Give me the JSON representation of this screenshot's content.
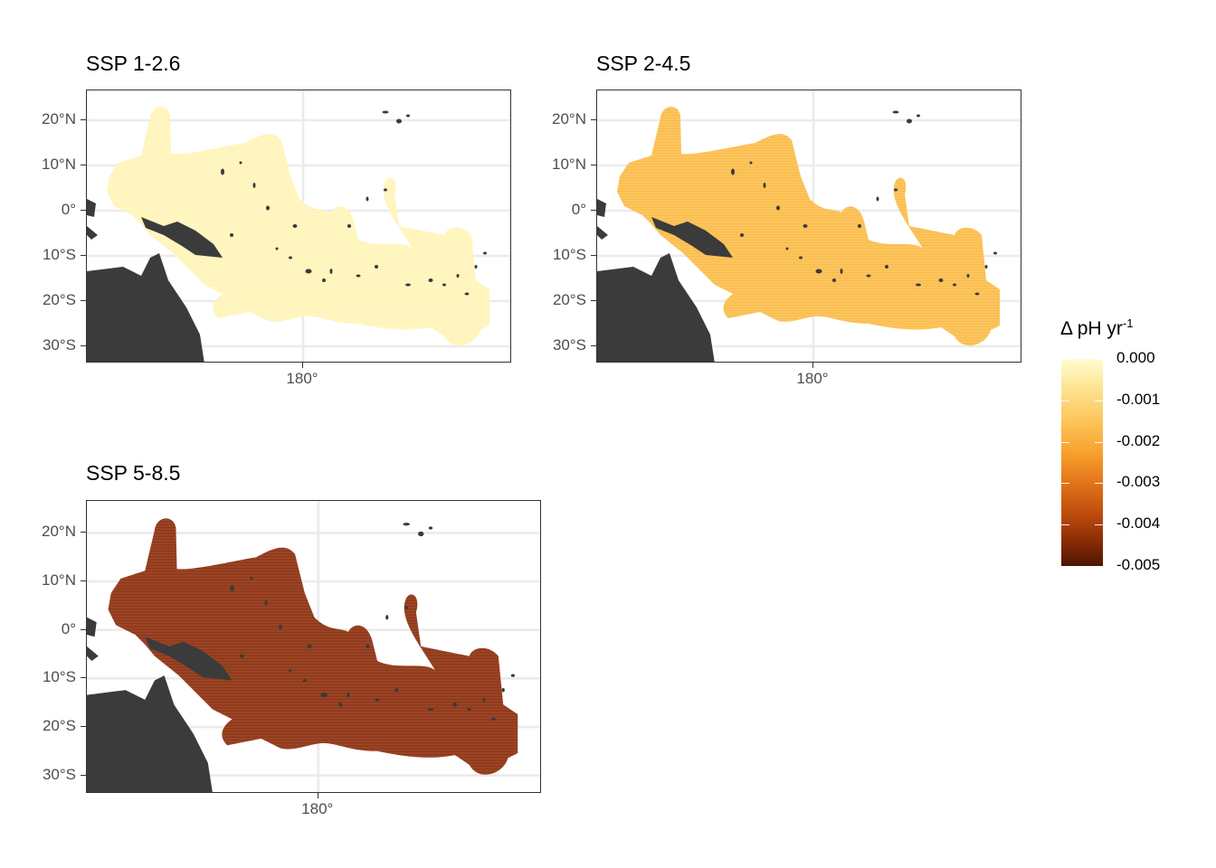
{
  "panels": [
    {
      "title": "SSP 1-2.6",
      "fill": "#fff6c2",
      "dot": "#fff0b0"
    },
    {
      "title": "SSP 2-4.5",
      "fill": "#fcc55c",
      "dot": "#f6b347"
    },
    {
      "title": "SSP 5-8.5",
      "fill": "#9e4424",
      "dot": "#6e2c14"
    }
  ],
  "axes": {
    "y_labels": [
      "20°N",
      "10°N",
      "0°",
      "10°S",
      "20°S",
      "30°S"
    ],
    "x_labels": [
      "180°"
    ]
  },
  "legend": {
    "title_main": "Δ pH yr",
    "title_sup": "-1",
    "labels": [
      "0.000",
      "-0.001",
      "-0.002",
      "-0.003",
      "-0.004",
      "-0.005"
    ],
    "color_min": "#fffdd0",
    "color_max": "#4d1602"
  },
  "colors": {
    "land": "#3b3b3b",
    "grid": "#ebebeb",
    "frame": "#333333"
  }
}
